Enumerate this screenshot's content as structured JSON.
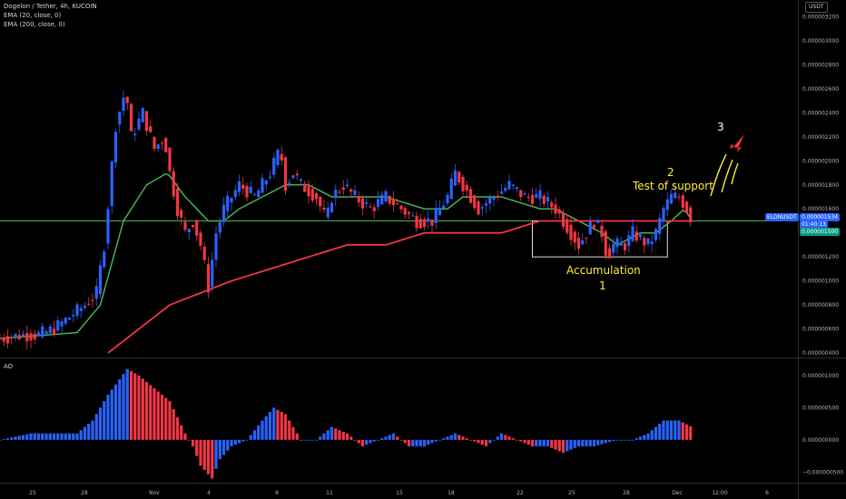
{
  "header": {
    "title": "Dogelon / Tether, 4h, KUCOIN",
    "ema20": "EMA (20, close, 0)",
    "ema200": "EMA (200, close, 0)",
    "ao_label": "AO",
    "currency": "USDT"
  },
  "price_axis": {
    "ticks": [
      "0.000003200",
      "0.000003000",
      "0.000002800",
      "0.000002600",
      "0.000002400",
      "0.000002200",
      "0.000002000",
      "0.000001800",
      "0.000001600",
      "0.000001200",
      "0.000001000",
      "0.000000800",
      "0.000000600",
      "0.000000400"
    ]
  },
  "ao_axis": {
    "ticks": [
      "0.000001000",
      "0.000000500",
      "0.000000000",
      "−0.000000500"
    ]
  },
  "time_axis": {
    "ticks": [
      "25",
      "28",
      "Nov",
      "4",
      "8",
      "11",
      "15",
      "18",
      "22",
      "25",
      "28",
      "Dec",
      "12:00",
      "6"
    ]
  },
  "last_price": {
    "symbol": "ELONUSDT",
    "value": "0.000001534",
    "countdown": "01:40:13"
  },
  "support_level": {
    "value": "0.000001500"
  },
  "annotations": {
    "accumulation": "Accumulation",
    "label_1": "1",
    "label_2": "2",
    "test_of_support": "Test of support",
    "label_3": "3"
  },
  "colors": {
    "background": "#000000",
    "up_candle": "#2962ff",
    "down_candle": "#f23645",
    "ema20": "#4caf50",
    "ema200": "#f23645",
    "support_line": "#4caf50",
    "annotation_text": "#ffeb3b",
    "label_3_text": "#ffffff",
    "rocket": "#f23645",
    "last_price_tag": "#2962ff",
    "support_tag": "#089981"
  },
  "chart_data": [
    {
      "type": "candlestick",
      "title": "Dogelon / Tether, 4h, KUCOIN",
      "y_range": [
        3.7e-07,
        3.34e-06
      ],
      "keypoints": {
        "close": [
          [
            0,
            5.2e-07
          ],
          [
            3,
            5.5e-07
          ],
          [
            5,
            5.5e-07
          ],
          [
            7,
            6e-07
          ],
          [
            9,
            7e-07
          ],
          [
            11,
            8e-07
          ],
          [
            12.5,
            9e-07
          ],
          [
            13.5,
            1.3e-06
          ],
          [
            15,
            2.3e-06
          ],
          [
            16.3,
            2.6e-06
          ],
          [
            17,
            2.2e-06
          ],
          [
            18.5,
            2.4e-06
          ],
          [
            20,
            2.1e-06
          ],
          [
            21.3,
            2.2e-06
          ],
          [
            22,
            1.9e-06
          ],
          [
            23,
            1.6e-06
          ],
          [
            24,
            1.4e-06
          ],
          [
            25,
            1.5e-06
          ],
          [
            26,
            1.3e-06
          ],
          [
            27,
            9.5e-07
          ],
          [
            28,
            1.4e-06
          ],
          [
            29,
            1.6e-06
          ],
          [
            31,
            1.8e-06
          ],
          [
            33,
            1.7e-06
          ],
          [
            35,
            1.9e-06
          ],
          [
            36.3,
            2.1e-06
          ],
          [
            37,
            1.8e-06
          ],
          [
            38,
            1.9e-06
          ],
          [
            39,
            1.8e-06
          ],
          [
            41,
            1.7e-06
          ],
          [
            42.3,
            1.5e-06
          ],
          [
            43,
            1.7e-06
          ],
          [
            44.5,
            1.8e-06
          ],
          [
            46,
            1.7e-06
          ],
          [
            48,
            1.6e-06
          ],
          [
            50,
            1.7e-06
          ],
          [
            52,
            1.6e-06
          ],
          [
            54,
            1.5e-06
          ],
          [
            56,
            1.5e-06
          ],
          [
            58,
            1.7e-06
          ],
          [
            59,
            1.9e-06
          ],
          [
            60,
            1.8e-06
          ],
          [
            62,
            1.6e-06
          ],
          [
            64,
            1.7e-06
          ],
          [
            66,
            1.8e-06
          ],
          [
            68,
            1.7e-06
          ],
          [
            70,
            1.7e-06
          ],
          [
            72,
            1.6e-06
          ],
          [
            73,
            1.5e-06
          ],
          [
            74,
            1.4e-06
          ],
          [
            75,
            1.3e-06
          ],
          [
            76,
            1.4e-06
          ],
          [
            77,
            1.5e-06
          ],
          [
            78,
            1.4e-06
          ],
          [
            78.7,
            1.2e-06
          ],
          [
            79.5,
            1.3e-06
          ],
          [
            81,
            1.3e-06
          ],
          [
            82,
            1.4e-06
          ],
          [
            84,
            1.3e-06
          ],
          [
            85,
            1.4e-06
          ],
          [
            86,
            1.6e-06
          ],
          [
            87,
            1.7e-06
          ],
          [
            88,
            1.7e-06
          ],
          [
            89,
            1.6e-06
          ],
          [
            89.7,
            1.5e-06
          ]
        ]
      },
      "series": [
        {
          "name": "EMA (20, close, 0)",
          "keypoints": [
            [
              0,
              5.2e-07
            ],
            [
              10,
              5.7e-07
            ],
            [
              13,
              8e-07
            ],
            [
              16,
              1.5e-06
            ],
            [
              19,
              1.8e-06
            ],
            [
              21.7,
              1.9e-06
            ],
            [
              24,
              1.7e-06
            ],
            [
              27,
              1.5e-06
            ],
            [
              29,
              1.5e-06
            ],
            [
              31,
              1.6e-06
            ],
            [
              34,
              1.7e-06
            ],
            [
              37,
              1.8e-06
            ],
            [
              40,
              1.8e-06
            ],
            [
              43,
              1.7e-06
            ],
            [
              46,
              1.7e-06
            ],
            [
              50,
              1.7e-06
            ],
            [
              55,
              1.6e-06
            ],
            [
              58,
              1.6e-06
            ],
            [
              60,
              1.7e-06
            ],
            [
              65,
              1.7e-06
            ],
            [
              70,
              1.6e-06
            ],
            [
              72,
              1.6e-06
            ],
            [
              75,
              1.5e-06
            ],
            [
              78,
              1.4e-06
            ],
            [
              80,
              1.3e-06
            ],
            [
              83,
              1.4e-06
            ],
            [
              85,
              1.4e-06
            ],
            [
              87,
              1.5e-06
            ],
            [
              88.7,
              1.6e-06
            ],
            [
              89.7,
              1.5e-06
            ]
          ]
        },
        {
          "name": "EMA (200, close, 0)",
          "keypoints": [
            [
              14,
              4e-07
            ],
            [
              18,
              6e-07
            ],
            [
              22,
              8e-07
            ],
            [
              26,
              9e-07
            ],
            [
              30,
              1e-06
            ],
            [
              35,
              1.1e-06
            ],
            [
              40,
              1.2e-06
            ],
            [
              45,
              1.3e-06
            ],
            [
              50,
              1.3e-06
            ],
            [
              55,
              1.4e-06
            ],
            [
              60,
              1.4e-06
            ],
            [
              65,
              1.4e-06
            ],
            [
              70,
              1.5e-06
            ],
            [
              75,
              1.5e-06
            ],
            [
              80,
              1.5e-06
            ],
            [
              85,
              1.5e-06
            ],
            [
              89.7,
              1.5e-06
            ]
          ]
        }
      ],
      "support_value": 1.5e-06,
      "accumulation_box": {
        "t_from": 69,
        "t_to": 86.5,
        "y_from": 1.2e-06,
        "y_to": 1.5e-06
      }
    },
    {
      "type": "bar",
      "title": "AO",
      "y_range": [
        -6.5e-07,
        1.25e-06
      ],
      "keypoints": [
        [
          0,
          0.0
        ],
        [
          4,
          1e-07
        ],
        [
          7,
          1e-07
        ],
        [
          10,
          1e-07
        ],
        [
          12,
          3e-07
        ],
        [
          14,
          7e-07
        ],
        [
          16.5,
          1.1e-06
        ],
        [
          18,
          1e-06
        ],
        [
          20,
          8e-07
        ],
        [
          22,
          6e-07
        ],
        [
          24,
          1e-07
        ],
        [
          25,
          -1e-07
        ],
        [
          26,
          -4e-07
        ],
        [
          27.5,
          -6e-07
        ],
        [
          28.5,
          -3e-07
        ],
        [
          30,
          -1e-07
        ],
        [
          32,
          0.0
        ],
        [
          34,
          3e-07
        ],
        [
          35.5,
          5e-07
        ],
        [
          37,
          4e-07
        ],
        [
          39,
          0.0
        ],
        [
          41,
          0.0
        ],
        [
          43,
          2e-07
        ],
        [
          45,
          1e-07
        ],
        [
          47,
          -1e-07
        ],
        [
          49,
          0.0
        ],
        [
          51,
          1e-07
        ],
        [
          53,
          -1e-07
        ],
        [
          55,
          -1e-07
        ],
        [
          57,
          0.0
        ],
        [
          59,
          1e-07
        ],
        [
          61,
          0.0
        ],
        [
          63,
          -1e-07
        ],
        [
          65,
          1e-07
        ],
        [
          67,
          0.0
        ],
        [
          69,
          -1e-07
        ],
        [
          71,
          -1e-07
        ],
        [
          73,
          -2e-07
        ],
        [
          75,
          -1e-07
        ],
        [
          77,
          -1e-07
        ],
        [
          80,
          0.0
        ],
        [
          82,
          0.0
        ],
        [
          84,
          1e-07
        ],
        [
          86,
          3e-07
        ],
        [
          88,
          3e-07
        ],
        [
          89.7,
          2e-07
        ]
      ]
    }
  ]
}
